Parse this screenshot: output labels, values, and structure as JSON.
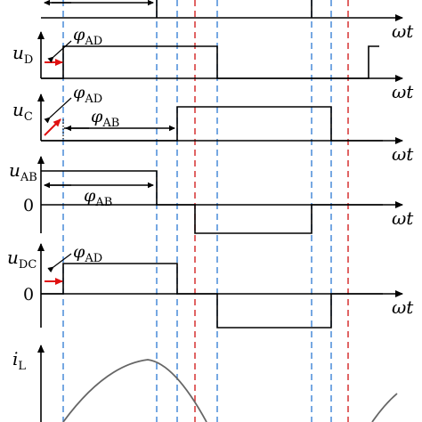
{
  "axis_label": "ωt",
  "zero_label": "0",
  "colors": {
    "signal": "#000000",
    "guide_blue": "#3b82d6",
    "guide_red": "#d22222",
    "phase_arrow": "#e01010",
    "current": "#666666"
  },
  "panels": {
    "uD": {
      "symbol": "u",
      "sub": "D",
      "phase": {
        "sym": "φ",
        "sub": "AD"
      }
    },
    "uC": {
      "symbol": "u",
      "sub": "C",
      "phase1": {
        "sym": "φ",
        "sub": "AD"
      },
      "phase2": {
        "sym": "φ",
        "sub": "AB"
      }
    },
    "uAB": {
      "symbol": "u",
      "sub": "AB",
      "phase": {
        "sym": "φ",
        "sub": "AB"
      }
    },
    "uDC": {
      "symbol": "u",
      "sub": "DC",
      "phase": {
        "sym": "φ",
        "sub": "AD"
      }
    },
    "iL": {
      "symbol": "i",
      "sub": "L"
    }
  }
}
